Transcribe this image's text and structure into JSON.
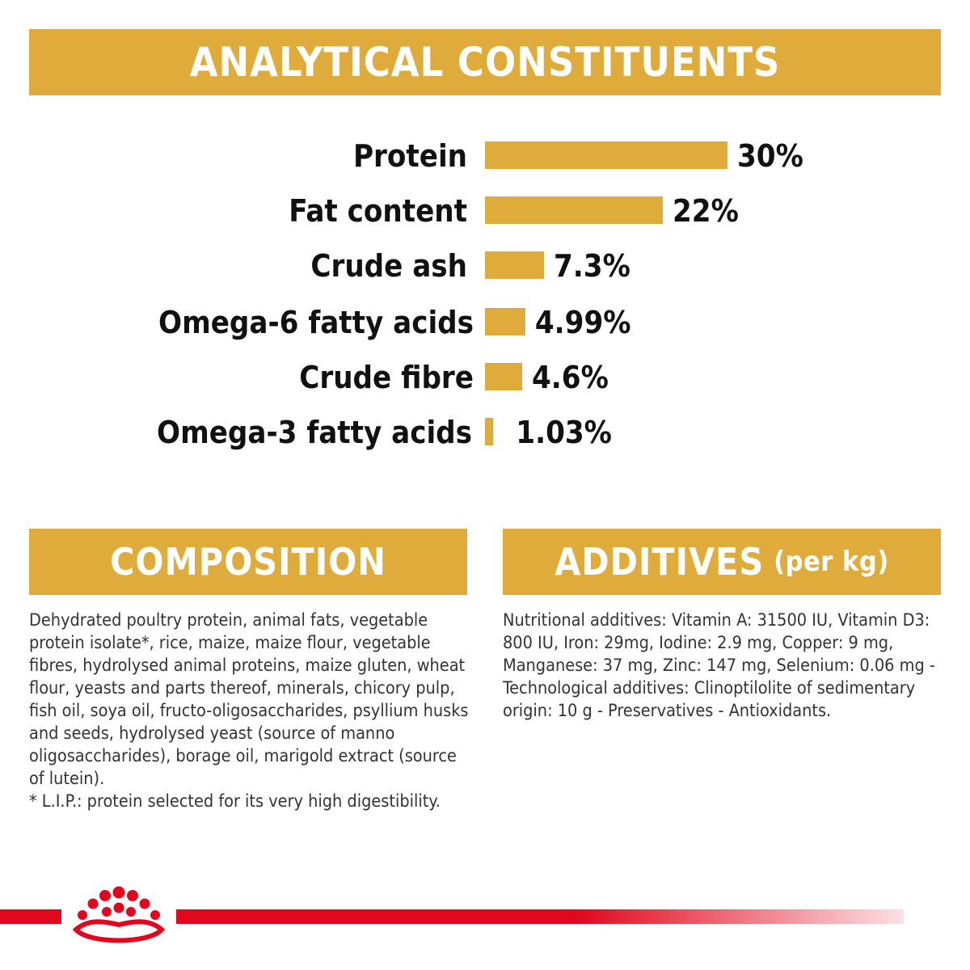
{
  "analytical": {
    "title": "ANALYTICAL CONSTITUENTS"
  },
  "chart_data": {
    "type": "bar",
    "orientation": "horizontal",
    "categories": [
      "Protein",
      "Fat content",
      "Crude ash",
      "Omega-6 fatty acids",
      "Crude fibre",
      "Omega-3 fatty acids"
    ],
    "values": [
      30,
      22,
      7.3,
      4.99,
      4.6,
      1.03
    ],
    "value_labels": [
      "30%",
      "22%",
      "7.3%",
      "4.99%",
      "4.6%",
      "1.03%"
    ],
    "unit": "%",
    "grid": false,
    "bar_color": "#dfac3c"
  },
  "composition": {
    "title": "COMPOSITION",
    "text": "Dehydrated poultry protein, animal fats, vegetable protein isolate*, rice, maize, maize flour, vegetable fibres, hydrolysed animal proteins, maize gluten, wheat flour, yeasts and parts thereof, minerals, chicory pulp, fish oil, soya oil, fructo-oligosaccharides, psyllium husks and seeds, hydrolysed yeast (source of manno oligosaccharides), borage oil, marigold extract (source of lutein).",
    "footnote": "* L.I.P.: protein selected for its very high digestibility."
  },
  "additives": {
    "title": "ADDITIVES",
    "subtitle": "(per kg)",
    "text": "Nutritional additives: Vitamin A: 31500 IU, Vitamin D3: 800 IU, Iron: 29mg, Iodine: 2.9 mg, Copper: 9 mg, Manganese: 37 mg, Zinc: 147 mg, Selenium: 0.06 mg - Technological additives: Clinoptilolite of sedimentary origin: 10 g - Preservatives - Antioxidants."
  },
  "colors": {
    "accent": "#dfac3c",
    "brand_red": "#e2071d"
  },
  "footer": {
    "logo_icon": "royal-canin-crown-icon"
  }
}
